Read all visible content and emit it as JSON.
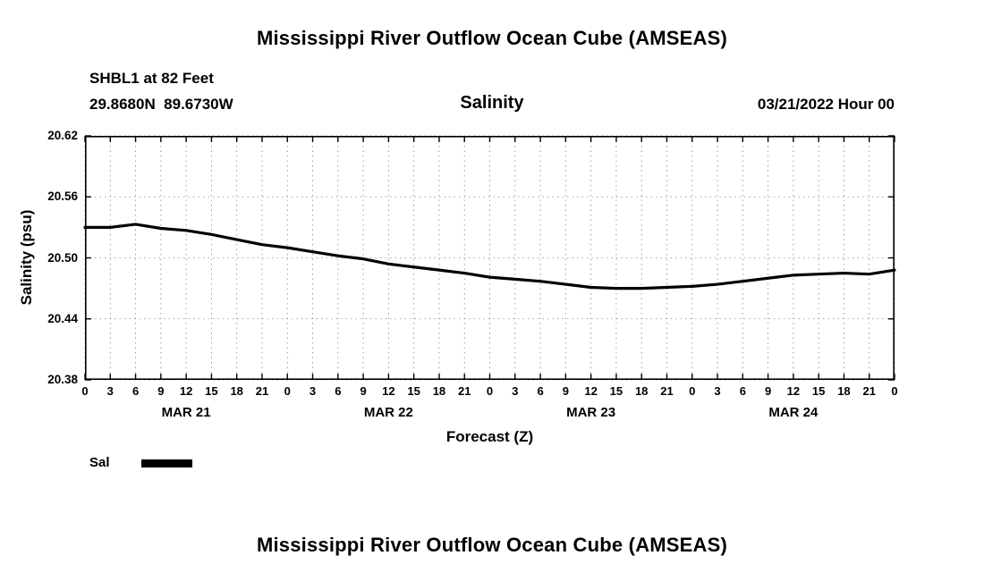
{
  "page": {
    "top_title": "Mississippi River Outflow Ocean Cube (AMSEAS)",
    "bottom_title": "Mississippi River Outflow Ocean Cube (AMSEAS)"
  },
  "header": {
    "station": "SHBL1 at 82 Feet",
    "coordinates": "29.8680N  89.6730W",
    "variable": "Salinity",
    "datetime": "03/21/2022 Hour 00"
  },
  "legend": {
    "label": "Sal"
  },
  "chart_data": {
    "type": "line",
    "title": "Salinity",
    "xlabel": "Forecast (Z)",
    "ylabel": "Salinity (psu)",
    "ylim": [
      20.38,
      20.62
    ],
    "yticks": [
      20.38,
      20.44,
      20.5,
      20.56,
      20.62
    ],
    "ytick_labels": [
      "20.38",
      "20.44",
      "20.50",
      "20.56",
      "20.62"
    ],
    "x_hours": [
      0,
      3,
      6,
      9,
      12,
      15,
      18,
      21,
      24,
      27,
      30,
      33,
      36,
      39,
      42,
      45,
      48,
      51,
      54,
      57,
      60,
      63,
      66,
      69,
      72,
      75,
      78,
      81,
      84,
      87,
      90,
      93,
      96
    ],
    "x_tick_labels": [
      "0",
      "3",
      "6",
      "9",
      "12",
      "15",
      "18",
      "21",
      "0",
      "3",
      "6",
      "9",
      "12",
      "15",
      "18",
      "21",
      "0",
      "3",
      "6",
      "9",
      "12",
      "15",
      "18",
      "21",
      "0",
      "3",
      "6",
      "9",
      "12",
      "15",
      "18",
      "21",
      "0"
    ],
    "day_labels": [
      "MAR 21",
      "MAR 22",
      "MAR 23",
      "MAR 24"
    ],
    "grid": true,
    "legend_position": "bottom-left",
    "line_color": "#000000",
    "series": [
      {
        "name": "Sal",
        "values": [
          20.53,
          20.53,
          20.533,
          20.529,
          20.527,
          20.523,
          20.518,
          20.513,
          20.51,
          20.506,
          20.502,
          20.499,
          20.494,
          20.491,
          20.488,
          20.485,
          20.481,
          20.479,
          20.477,
          20.474,
          20.471,
          20.47,
          20.47,
          20.471,
          20.472,
          20.474,
          20.477,
          20.48,
          20.483,
          20.484,
          20.485,
          20.484,
          20.488
        ]
      }
    ]
  }
}
